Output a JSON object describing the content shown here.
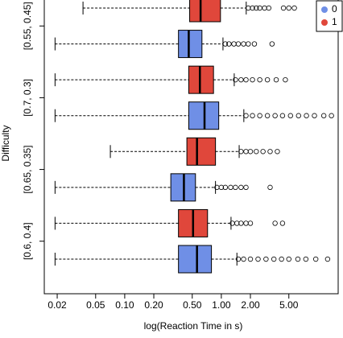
{
  "chart_data": {
    "type": "boxplot",
    "x_label": "log(Reaction Time in s)",
    "y_label": "Difficulty",
    "categories": [
      "[0.6, 0.4]",
      "[0.65, 0.35]",
      "[0.7, 0.3]",
      "[0.55, 0.45]"
    ],
    "log_x": true,
    "xlim": [
      0.0147,
      16.2
    ],
    "xticks": [
      0.02,
      0.05,
      {
        "value": 0.1,
        "label": "0.10"
      },
      {
        "value": 0.2,
        "label": "0.20"
      },
      {
        "value": 0.5,
        "label": "0.50"
      },
      {
        "value": 1,
        "label": "1.00"
      },
      {
        "value": 2,
        "label": "2.00"
      },
      {
        "value": 5,
        "label": "5.00"
      }
    ],
    "legend": "top-right",
    "series": [
      {
        "name": "0",
        "color": "#6f8fe6",
        "values": [
          {
            "min": 0.019,
            "q1": 0.36,
            "median": 0.56,
            "q3": 0.79,
            "max": 1.45,
            "outliers": [
              1.5,
              1.7,
              2.0,
              2.4,
              2.9,
              3.5,
              4.2,
              5.0,
              6.2,
              7.5,
              9.5,
              12.6
            ]
          },
          {
            "min": 0.019,
            "q1": 0.3,
            "median": 0.41,
            "q3": 0.54,
            "max": 0.87,
            "outliers": [
              0.9,
              1.0,
              1.1,
              1.25,
              1.4,
              1.6,
              1.8,
              3.2
            ]
          },
          {
            "min": 0.019,
            "q1": 0.46,
            "median": 0.67,
            "q3": 0.94,
            "max": 1.71,
            "outliers": [
              1.8,
              2.1,
              2.5,
              3.0,
              3.6,
              4.3,
              5.2,
              6.3,
              7.6,
              9.2,
              11.5,
              13.8
            ]
          },
          {
            "min": 0.019,
            "q1": 0.36,
            "median": 0.46,
            "q3": 0.63,
            "max": 1.04,
            "outliers": [
              1.1,
              1.2,
              1.35,
              1.5,
              1.7,
              1.9,
              2.2,
              3.35
            ]
          }
        ]
      },
      {
        "name": "1",
        "color": "#e0473b",
        "values": [
          {
            "min": 0.019,
            "q1": 0.36,
            "median": 0.51,
            "q3": 0.72,
            "max": 1.26,
            "outliers": [
              1.3,
              1.45,
              1.6,
              1.8,
              2.0,
              3.6,
              4.3
            ]
          },
          {
            "min": 0.071,
            "q1": 0.44,
            "median": 0.56,
            "q3": 0.87,
            "max": 1.53,
            "outliers": [
              1.6,
              1.8,
              2.0,
              2.3,
              2.7,
              3.2,
              3.8
            ]
          },
          {
            "min": 0.019,
            "q1": 0.46,
            "median": 0.6,
            "q3": 0.83,
            "max": 1.36,
            "outliers": [
              1.4,
              1.6,
              1.8,
              2.1,
              2.5,
              3.0,
              3.7,
              4.6
            ]
          },
          {
            "min": 0.037,
            "q1": 0.47,
            "median": 0.61,
            "q3": 0.98,
            "max": 1.81,
            "outliers": [
              1.9,
              2.1,
              2.3,
              2.5,
              2.8,
              3.1,
              4.4,
              5.0,
              5.7
            ]
          }
        ]
      }
    ]
  }
}
